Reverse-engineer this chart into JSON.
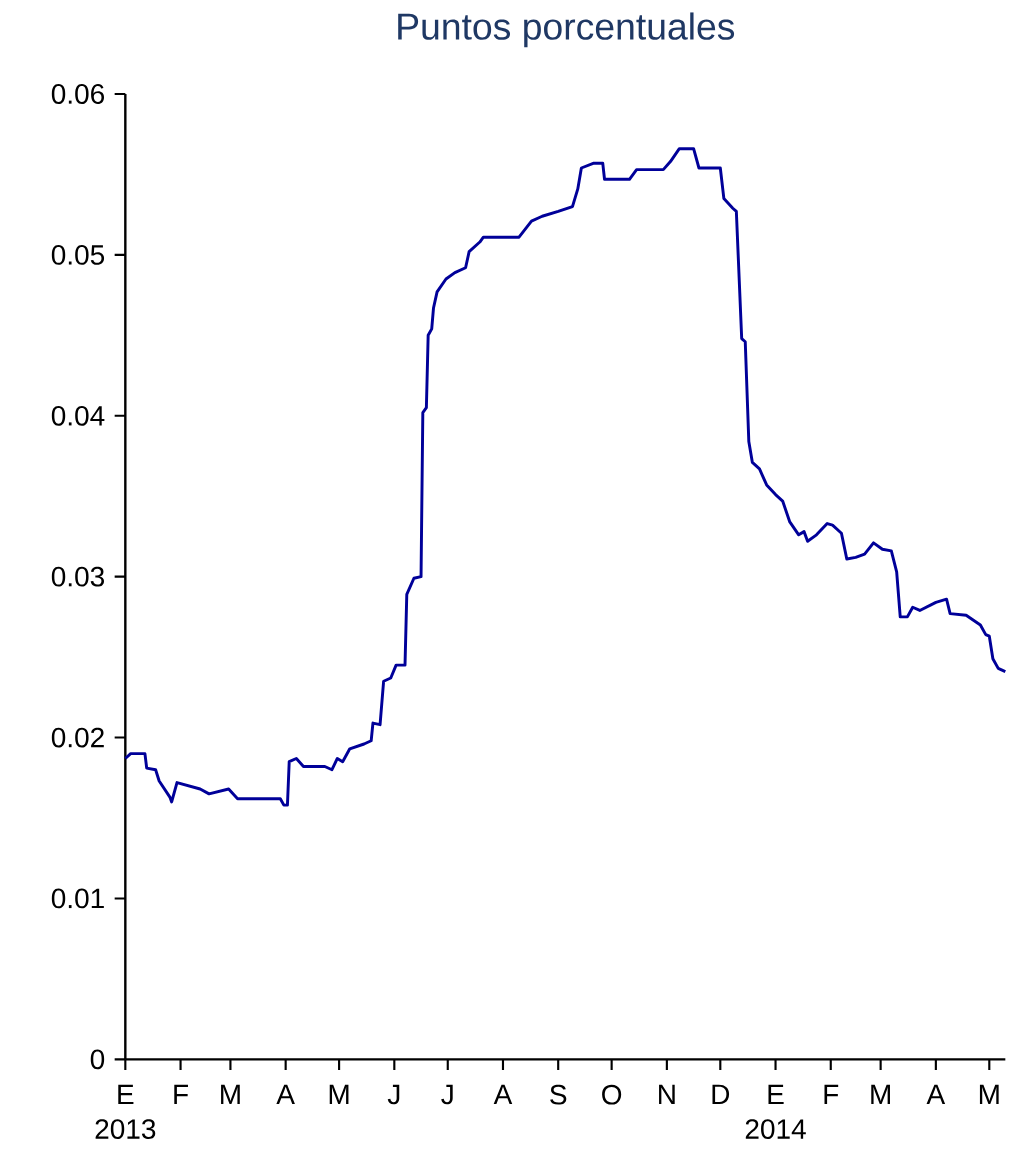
{
  "chart_data": {
    "type": "line",
    "title": "Puntos porcentuales",
    "x": [
      "2013-01-01",
      "2013-01-04",
      "2013-01-12",
      "2013-01-13",
      "2013-01-18",
      "2013-01-20",
      "2013-01-26",
      "2013-01-27",
      "2013-01-30",
      "2013-02-12",
      "2013-02-17",
      "2013-02-28",
      "2013-03-05",
      "2013-03-29",
      "2013-03-31",
      "2013-04-02",
      "2013-04-03",
      "2013-04-07",
      "2013-04-11",
      "2013-04-23",
      "2013-04-27",
      "2013-04-30",
      "2013-05-03",
      "2013-05-07",
      "2013-05-15",
      "2013-05-19",
      "2013-05-20",
      "2013-05-24",
      "2013-05-26",
      "2013-05-30",
      "2013-06-02",
      "2013-06-07",
      "2013-06-08",
      "2013-06-12",
      "2013-06-16",
      "2013-06-17",
      "2013-06-19",
      "2013-06-20",
      "2013-06-22",
      "2013-06-23",
      "2013-06-25",
      "2013-06-30",
      "2013-07-05",
      "2013-07-11",
      "2013-07-13",
      "2013-07-19",
      "2013-07-21",
      "2013-08-10",
      "2013-08-17",
      "2013-08-23",
      "2013-09-01",
      "2013-09-09",
      "2013-09-12",
      "2013-09-14",
      "2013-09-21",
      "2013-09-26",
      "2013-09-27",
      "2013-10-11",
      "2013-10-15",
      "2013-10-30",
      "2013-11-03",
      "2013-11-08",
      "2013-11-16",
      "2013-11-19",
      "2013-12-01",
      "2013-12-03",
      "2013-12-08",
      "2013-12-10",
      "2013-12-13",
      "2013-12-15",
      "2013-12-17",
      "2013-12-19",
      "2013-12-23",
      "2013-12-27",
      "2014-01-01",
      "2014-01-05",
      "2014-01-09",
      "2014-01-14",
      "2014-01-17",
      "2014-01-19",
      "2014-01-24",
      "2014-01-30",
      "2014-02-02",
      "2014-02-07",
      "2014-02-10",
      "2014-02-15",
      "2014-02-20",
      "2014-02-25",
      "2014-03-02",
      "2014-03-07",
      "2014-03-10",
      "2014-03-12",
      "2014-03-16",
      "2014-03-19",
      "2014-03-23",
      "2014-04-01",
      "2014-04-07",
      "2014-04-09",
      "2014-04-18",
      "2014-04-26",
      "2014-04-29",
      "2014-05-01",
      "2014-05-03",
      "2014-05-06",
      "2014-05-10"
    ],
    "series": [
      {
        "color": "#000099",
        "values": [
          0.0187,
          0.019,
          0.019,
          0.0181,
          0.018,
          0.0173,
          0.0163,
          0.016,
          0.0172,
          0.0168,
          0.0165,
          0.0168,
          0.0162,
          0.0162,
          0.0158,
          0.0158,
          0.0185,
          0.0187,
          0.0182,
          0.0182,
          0.018,
          0.0187,
          0.0185,
          0.0193,
          0.0196,
          0.0198,
          0.0209,
          0.0208,
          0.0235,
          0.0237,
          0.0245,
          0.0245,
          0.0289,
          0.0299,
          0.03,
          0.0402,
          0.0405,
          0.045,
          0.0454,
          0.0467,
          0.0477,
          0.0485,
          0.0489,
          0.0492,
          0.0502,
          0.0508,
          0.0511,
          0.0511,
          0.0521,
          0.0524,
          0.0527,
          0.053,
          0.0541,
          0.0554,
          0.0557,
          0.0557,
          0.0547,
          0.0547,
          0.0553,
          0.0553,
          0.0558,
          0.0566,
          0.0566,
          0.0554,
          0.0554,
          0.0535,
          0.0529,
          0.0527,
          0.0448,
          0.0446,
          0.0384,
          0.0371,
          0.0367,
          0.0357,
          0.0351,
          0.0347,
          0.0334,
          0.0326,
          0.0328,
          0.0322,
          0.0326,
          0.0333,
          0.0332,
          0.0327,
          0.0311,
          0.0312,
          0.0314,
          0.0321,
          0.0317,
          0.0316,
          0.0303,
          0.0275,
          0.0275,
          0.0281,
          0.0279,
          0.0284,
          0.0286,
          0.0277,
          0.0276,
          0.027,
          0.0264,
          0.0263,
          0.0249,
          0.0243,
          0.0241
        ]
      }
    ],
    "xlim": [
      "2013-01-01",
      "2014-05-10"
    ],
    "xticks": [
      {
        "value": "2013-01-01",
        "label": "E 2013"
      },
      {
        "value": "2013-02-01",
        "label": "F"
      },
      {
        "value": "2013-03-01",
        "label": "M"
      },
      {
        "value": "2013-04-01",
        "label": "A"
      },
      {
        "value": "2013-05-01",
        "label": "M"
      },
      {
        "value": "2013-06-01",
        "label": "J"
      },
      {
        "value": "2013-07-01",
        "label": "J"
      },
      {
        "value": "2013-08-01",
        "label": "A"
      },
      {
        "value": "2013-09-01",
        "label": "S"
      },
      {
        "value": "2013-10-01",
        "label": "O"
      },
      {
        "value": "2013-11-01",
        "label": "N"
      },
      {
        "value": "2013-12-01",
        "label": "D"
      },
      {
        "value": "2014-01-01",
        "label": "E 2014"
      },
      {
        "value": "2014-02-01",
        "label": "F"
      },
      {
        "value": "2014-03-01",
        "label": "M"
      },
      {
        "value": "2014-04-01",
        "label": "A"
      },
      {
        "value": "2014-05-01",
        "label": "M"
      }
    ],
    "ylim": [
      0,
      0.06
    ],
    "yticks": [
      0,
      0.01,
      0.02,
      0.03,
      0.04,
      0.05,
      0.06
    ],
    "grid": false,
    "marker": "none",
    "line_style": "solid"
  }
}
